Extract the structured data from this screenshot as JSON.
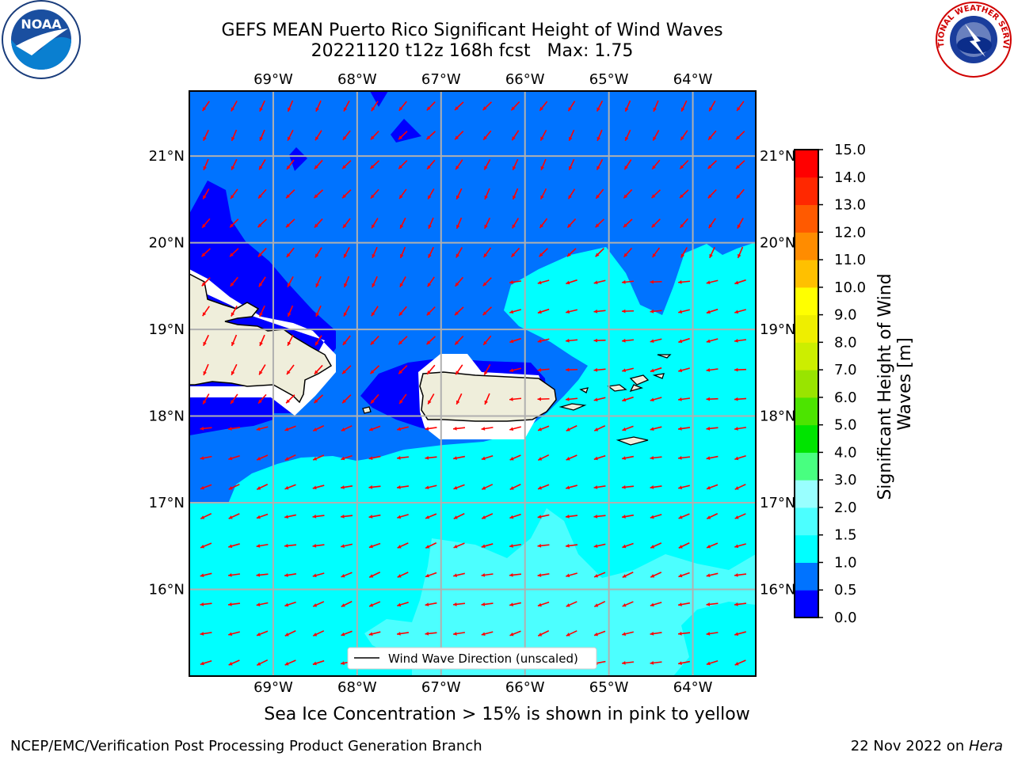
{
  "title": {
    "line1": "GEFS MEAN Puerto Rico Significant Height of Wind Waves",
    "line2": "20221120 t12z 168h fcst   Max: 1.75"
  },
  "map": {
    "lon_labels": [
      "69°W",
      "68°W",
      "67°W",
      "66°W",
      "65°W",
      "64°W"
    ],
    "lat_labels": [
      "21°N",
      "20°N",
      "19°N",
      "18°N",
      "17°N",
      "16°N"
    ],
    "lon_values": [
      -69,
      -68,
      -67,
      -66,
      -65,
      -64
    ],
    "lat_values": [
      21,
      20,
      19,
      18,
      17,
      16
    ],
    "lon_range": [
      -70,
      -63.25
    ],
    "lat_range": [
      15,
      21.75
    ],
    "legend_label": "Wind Wave Direction (unscaled)",
    "arrow_color": "#ff0000",
    "land_color": "#efeedb"
  },
  "colorbar": {
    "label": "Significant Height of Wind Waves [m]",
    "label_line1": "Significant Height of Wind",
    "label_line2": "Waves [m]",
    "ticks": [
      "0.0",
      "0.5",
      "1.0",
      "1.5",
      "2.0",
      "3.0",
      "4.0",
      "5.0",
      "6.0",
      "7.0",
      "8.0",
      "9.0",
      "10.0",
      "11.0",
      "12.0",
      "13.0",
      "14.0",
      "15.0"
    ],
    "colors": [
      "#0000ff",
      "#0073ff",
      "#00ffff",
      "#4cffff",
      "#99ffff",
      "#48ff80",
      "#00e400",
      "#4ce400",
      "#99e400",
      "#ccee00",
      "#eeee00",
      "#ffff00",
      "#ffc000",
      "#ff8c00",
      "#ff5a00",
      "#ff2800",
      "#ff0000"
    ]
  },
  "logos": {
    "noaa_text": "NOAA",
    "nws_text": "NATIONAL WEATHER SERVICE"
  },
  "footer": {
    "note": "Sea Ice Concentration > 15% is shown in pink to yellow",
    "left": "NCEP/EMC/Verification Post Processing Product Generation Branch",
    "right_date": "22 Nov 2022 on ",
    "right_host": "Hera"
  }
}
